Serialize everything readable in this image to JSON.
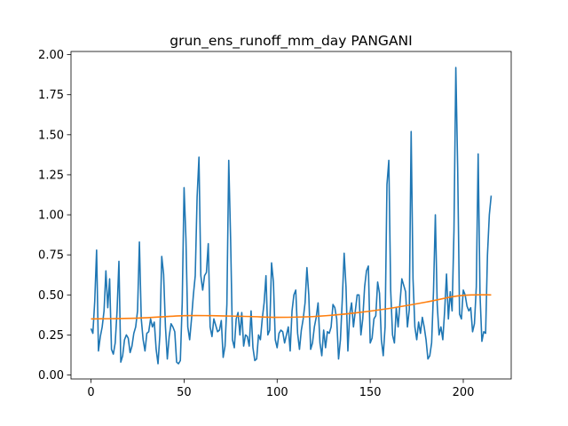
{
  "chart_data": {
    "type": "line",
    "title": "grun_ens_runoff_mm_day PANGANI",
    "xlabel": "",
    "ylabel": "",
    "xlim": [
      -10.75,
      225.75
    ],
    "ylim": [
      -0.025,
      2.02
    ],
    "xticks": [
      0,
      50,
      100,
      150,
      200
    ],
    "xtick_labels": [
      "0",
      "50",
      "100",
      "150",
      "200"
    ],
    "yticks": [
      0.0,
      0.25,
      0.5,
      0.75,
      1.0,
      1.25,
      1.5,
      1.75,
      2.0
    ],
    "ytick_labels": [
      "0.00",
      "0.25",
      "0.50",
      "0.75",
      "1.00",
      "1.25",
      "1.50",
      "1.75",
      "2.00"
    ],
    "grid": false,
    "series": [
      {
        "color": "#1f77b4",
        "values": [
          0.29,
          0.26,
          0.46,
          0.78,
          0.15,
          0.24,
          0.3,
          0.4,
          0.65,
          0.42,
          0.6,
          0.16,
          0.13,
          0.2,
          0.4,
          0.71,
          0.08,
          0.12,
          0.22,
          0.25,
          0.23,
          0.14,
          0.18,
          0.26,
          0.3,
          0.4,
          0.83,
          0.35,
          0.22,
          0.15,
          0.26,
          0.27,
          0.35,
          0.3,
          0.33,
          0.16,
          0.07,
          0.25,
          0.74,
          0.63,
          0.3,
          0.1,
          0.24,
          0.32,
          0.3,
          0.27,
          0.08,
          0.07,
          0.09,
          0.45,
          1.17,
          0.85,
          0.3,
          0.22,
          0.35,
          0.5,
          0.62,
          1.11,
          1.36,
          0.62,
          0.53,
          0.62,
          0.64,
          0.82,
          0.3,
          0.24,
          0.35,
          0.31,
          0.27,
          0.28,
          0.34,
          0.11,
          0.18,
          0.44,
          1.34,
          0.85,
          0.22,
          0.17,
          0.35,
          0.39,
          0.25,
          0.39,
          0.18,
          0.25,
          0.24,
          0.18,
          0.4,
          0.17,
          0.09,
          0.1,
          0.25,
          0.22,
          0.35,
          0.45,
          0.62,
          0.25,
          0.28,
          0.7,
          0.58,
          0.22,
          0.17,
          0.26,
          0.28,
          0.27,
          0.2,
          0.25,
          0.3,
          0.15,
          0.4,
          0.5,
          0.53,
          0.26,
          0.16,
          0.28,
          0.35,
          0.45,
          0.67,
          0.5,
          0.16,
          0.2,
          0.3,
          0.36,
          0.45,
          0.2,
          0.12,
          0.28,
          0.17,
          0.27,
          0.26,
          0.3,
          0.44,
          0.42,
          0.35,
          0.1,
          0.22,
          0.47,
          0.76,
          0.55,
          0.15,
          0.38,
          0.45,
          0.3,
          0.4,
          0.5,
          0.5,
          0.25,
          0.35,
          0.55,
          0.65,
          0.68,
          0.2,
          0.23,
          0.35,
          0.37,
          0.58,
          0.51,
          0.22,
          0.12,
          0.3,
          1.19,
          1.34,
          0.53,
          0.25,
          0.2,
          0.42,
          0.3,
          0.45,
          0.6,
          0.56,
          0.52,
          0.3,
          0.41,
          1.52,
          0.6,
          0.3,
          0.22,
          0.33,
          0.26,
          0.36,
          0.3,
          0.22,
          0.1,
          0.12,
          0.2,
          0.52,
          1.0,
          0.44,
          0.25,
          0.3,
          0.22,
          0.4,
          0.63,
          0.35,
          0.52,
          0.4,
          0.9,
          1.92,
          1.29,
          0.38,
          0.35,
          0.53,
          0.5,
          0.43,
          0.4,
          0.42,
          0.27,
          0.32,
          0.55,
          1.38,
          0.5,
          0.21,
          0.27,
          0.26,
          0.75,
          1.0,
          1.12
        ]
      },
      {
        "color": "#ff7f0e",
        "trend_control_points": [
          [
            0,
            0.35
          ],
          [
            25,
            0.355
          ],
          [
            50,
            0.37
          ],
          [
            65,
            0.37
          ],
          [
            85,
            0.365
          ],
          [
            100,
            0.36
          ],
          [
            120,
            0.365
          ],
          [
            140,
            0.385
          ],
          [
            160,
            0.415
          ],
          [
            180,
            0.455
          ],
          [
            195,
            0.49
          ],
          [
            205,
            0.5
          ],
          [
            215,
            0.5
          ]
        ]
      }
    ]
  }
}
